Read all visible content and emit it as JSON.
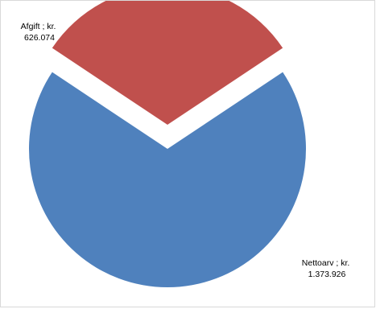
{
  "chart_data": {
    "type": "pie",
    "categories": [
      "Afgift",
      "Nettoarv"
    ],
    "values": [
      626074,
      1373926
    ],
    "labels": [
      {
        "line1": "Afgift ; kr.",
        "line2": "626.074"
      },
      {
        "line1": "Nettoarv ; kr.",
        "line2": "1.373.926"
      }
    ],
    "colors": [
      "#c0504d",
      "#4f81bd"
    ],
    "exploded": [
      "Afgift"
    ],
    "title": "",
    "legend": "none"
  }
}
